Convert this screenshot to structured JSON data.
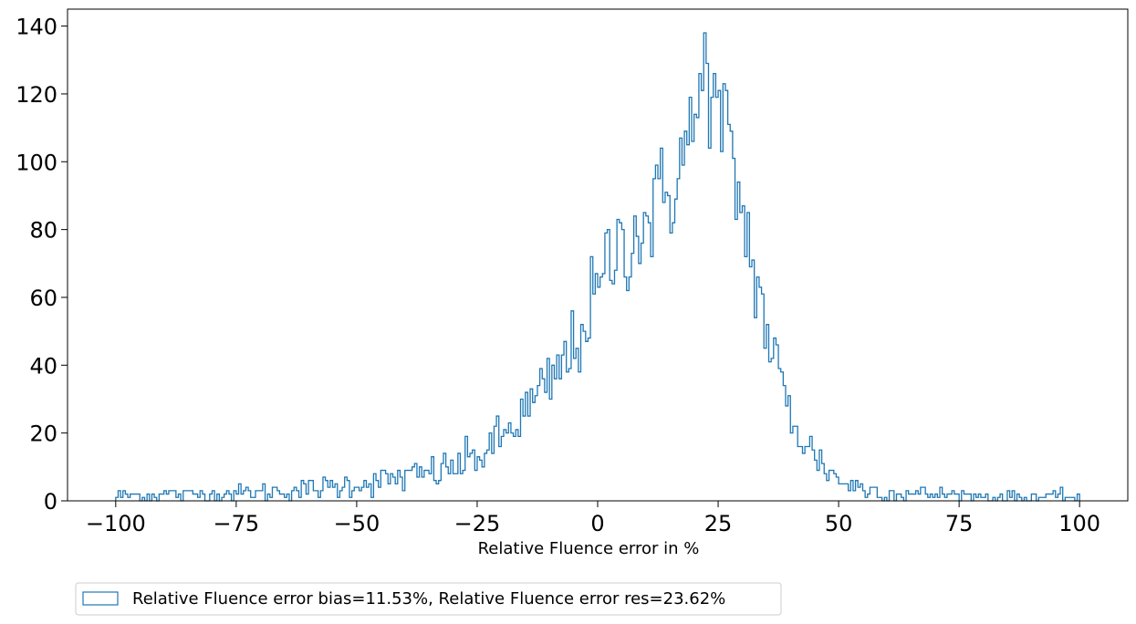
{
  "chart_data": {
    "type": "histogram",
    "title": "",
    "xlabel": "Relative Fluence error in %",
    "ylabel": "",
    "xlim": [
      -110,
      110
    ],
    "ylim": [
      0,
      145
    ],
    "xticks": [
      -100,
      -75,
      -50,
      -25,
      0,
      25,
      50,
      75,
      100
    ],
    "xtick_labels": [
      "−100",
      "−75",
      "−50",
      "−25",
      "0",
      "25",
      "50",
      "75",
      "100"
    ],
    "yticks": [
      0,
      20,
      40,
      60,
      80,
      100,
      120,
      140
    ],
    "ytick_labels": [
      "0",
      "20",
      "40",
      "60",
      "80",
      "100",
      "120",
      "140"
    ],
    "grid": false,
    "legend_placement": "below-left",
    "series": [
      {
        "name": "Relative Fluence error bias=11.53%, Relative Fluence error res=23.62%",
        "color": "#1f77b4",
        "bin_start": -100,
        "bin_end": 100,
        "bin_width": 0.5,
        "profile": [
          [
            -100,
            1.5
          ],
          [
            -90,
            1.8
          ],
          [
            -80,
            2.0
          ],
          [
            -70,
            2.5
          ],
          [
            -60,
            3.2
          ],
          [
            -55,
            4.0
          ],
          [
            -50,
            5.0
          ],
          [
            -45,
            6.0
          ],
          [
            -40,
            7.0
          ],
          [
            -35,
            8.0
          ],
          [
            -30,
            10.0
          ],
          [
            -25,
            13.0
          ],
          [
            -20,
            18.0
          ],
          [
            -15,
            26.0
          ],
          [
            -10,
            34.0
          ],
          [
            -5,
            45.0
          ],
          [
            -2,
            55.0
          ],
          [
            0,
            60.0
          ],
          [
            2,
            70.0
          ],
          [
            5,
            76.0
          ],
          [
            10,
            82.0
          ],
          [
            15,
            92.0
          ],
          [
            20,
            110.0
          ],
          [
            22,
            120.0
          ],
          [
            24,
            116.0
          ],
          [
            27,
            106.0
          ],
          [
            30,
            85.0
          ],
          [
            33,
            65.0
          ],
          [
            35,
            50.0
          ],
          [
            38,
            35.0
          ],
          [
            40,
            25.0
          ],
          [
            43,
            17.0
          ],
          [
            46,
            12.0
          ],
          [
            50,
            6.0
          ],
          [
            55,
            3.5
          ],
          [
            60,
            2.5
          ],
          [
            65,
            2.0
          ],
          [
            70,
            1.8
          ],
          [
            80,
            1.3
          ],
          [
            90,
            1.1
          ],
          [
            100,
            1.0
          ]
        ],
        "peak": {
          "x": 22.25,
          "y": 138
        }
      }
    ]
  }
}
